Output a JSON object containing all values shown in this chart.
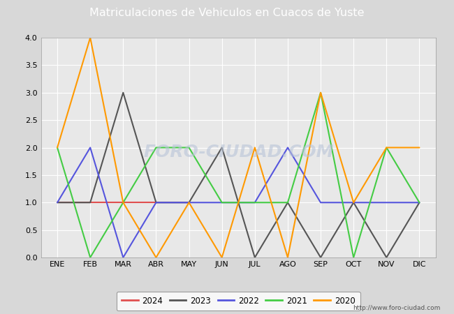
{
  "title": "Matriculaciones de Vehiculos en Cuacos de Yuste",
  "title_bg_color": "#4472c4",
  "title_text_color": "#ffffff",
  "months": [
    "ENE",
    "FEB",
    "MAR",
    "ABR",
    "MAY",
    "JUN",
    "JUL",
    "AGO",
    "SEP",
    "OCT",
    "NOV",
    "DIC"
  ],
  "series": [
    {
      "label": "2024",
      "color": "#e05050",
      "data": [
        1,
        1,
        1,
        1,
        1,
        null,
        null,
        null,
        null,
        null,
        null,
        null
      ]
    },
    {
      "label": "2023",
      "color": "#555555",
      "data": [
        1,
        1,
        3,
        1,
        1,
        2,
        0,
        1,
        0,
        1,
        0,
        1
      ]
    },
    {
      "label": "2022",
      "color": "#5555dd",
      "data": [
        1,
        2,
        0,
        1,
        1,
        1,
        1,
        2,
        1,
        1,
        1,
        1
      ]
    },
    {
      "label": "2021",
      "color": "#44cc44",
      "data": [
        2,
        0,
        1,
        2,
        2,
        1,
        1,
        1,
        3,
        0,
        2,
        1
      ]
    },
    {
      "label": "2020",
      "color": "#ff9900",
      "data": [
        2,
        4,
        1,
        0,
        1,
        0,
        2,
        0,
        3,
        1,
        2,
        2
      ]
    }
  ],
  "ylim": [
    0,
    4.0
  ],
  "yticks": [
    0.0,
    0.5,
    1.0,
    1.5,
    2.0,
    2.5,
    3.0,
    3.5,
    4.0
  ],
  "fig_bg_color": "#d8d8d8",
  "plot_bg_color": "#e8e8e8",
  "grid_color": "#ffffff",
  "watermark": "FORO-CIUDAD.COM",
  "url_text": "http://www.foro-ciudad.com",
  "legend_border_color": "#888888",
  "linewidth": 1.5
}
